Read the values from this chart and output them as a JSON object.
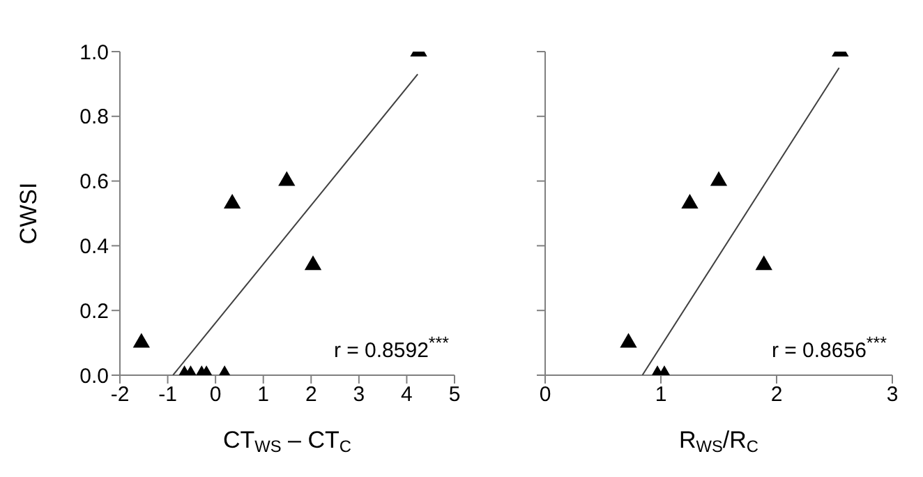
{
  "chart_data": [
    {
      "type": "scatter",
      "xlabel": "CT$_{WS}$ – CT$_{C}$",
      "ylabel": "CWSI",
      "grid": false,
      "xlim": [
        -2,
        5
      ],
      "xticks": [
        -2,
        -1,
        0,
        1,
        2,
        3,
        4,
        5
      ],
      "ylim": [
        0,
        1
      ],
      "yticks": [
        {
          "value": 0,
          "label": "0.0"
        },
        {
          "value": 0.2,
          "label": "0.2"
        },
        {
          "value": 0.4,
          "label": "0.4"
        },
        {
          "value": 0.6,
          "label": "0.6"
        },
        {
          "value": 0.8,
          "label": "0.8"
        },
        {
          "value": 1,
          "label": "1.0"
        }
      ],
      "annotations": [
        "r = 0.8592$^{***}$"
      ],
      "series": [
        {
          "marker": "triangle",
          "color": "#000000",
          "x": [
            -1.55,
            -0.65,
            -0.52,
            -0.29,
            -0.19,
            0.19,
            0.35,
            1.49,
            2.04,
            4.25
          ],
          "values": [
            0.1,
            0,
            0,
            0,
            0,
            0,
            0.53,
            0.6,
            0.34,
            1.0
          ]
        },
        {
          "type": "line",
          "marker": "none",
          "color": "#404040",
          "x": [
            -0.89,
            4.23
          ],
          "values": [
            0,
            0.93
          ]
        }
      ]
    },
    {
      "type": "scatter",
      "xlabel": "R$_{WS}$/R$_{C}$",
      "grid": false,
      "tick_labels": "x",
      "xlim": [
        0,
        3
      ],
      "xticks": [
        0,
        1,
        2,
        3
      ],
      "ylim": [
        0,
        1
      ],
      "yticks": [
        0,
        0.2,
        0.4,
        0.6,
        0.8,
        1
      ],
      "annotations": [
        "r = 0.8656$^{***}$"
      ],
      "series": [
        {
          "marker": "triangle",
          "color": "#000000",
          "x": [
            0.72,
            0.97,
            1.03,
            1.25,
            1.5,
            1.89,
            2.55
          ],
          "values": [
            0.1,
            0,
            0,
            0.53,
            0.6,
            0.34,
            1.0
          ]
        },
        {
          "type": "line",
          "marker": "none",
          "color": "#404040",
          "x": [
            0.84,
            2.54
          ],
          "values": [
            0,
            0.95
          ]
        }
      ]
    }
  ]
}
